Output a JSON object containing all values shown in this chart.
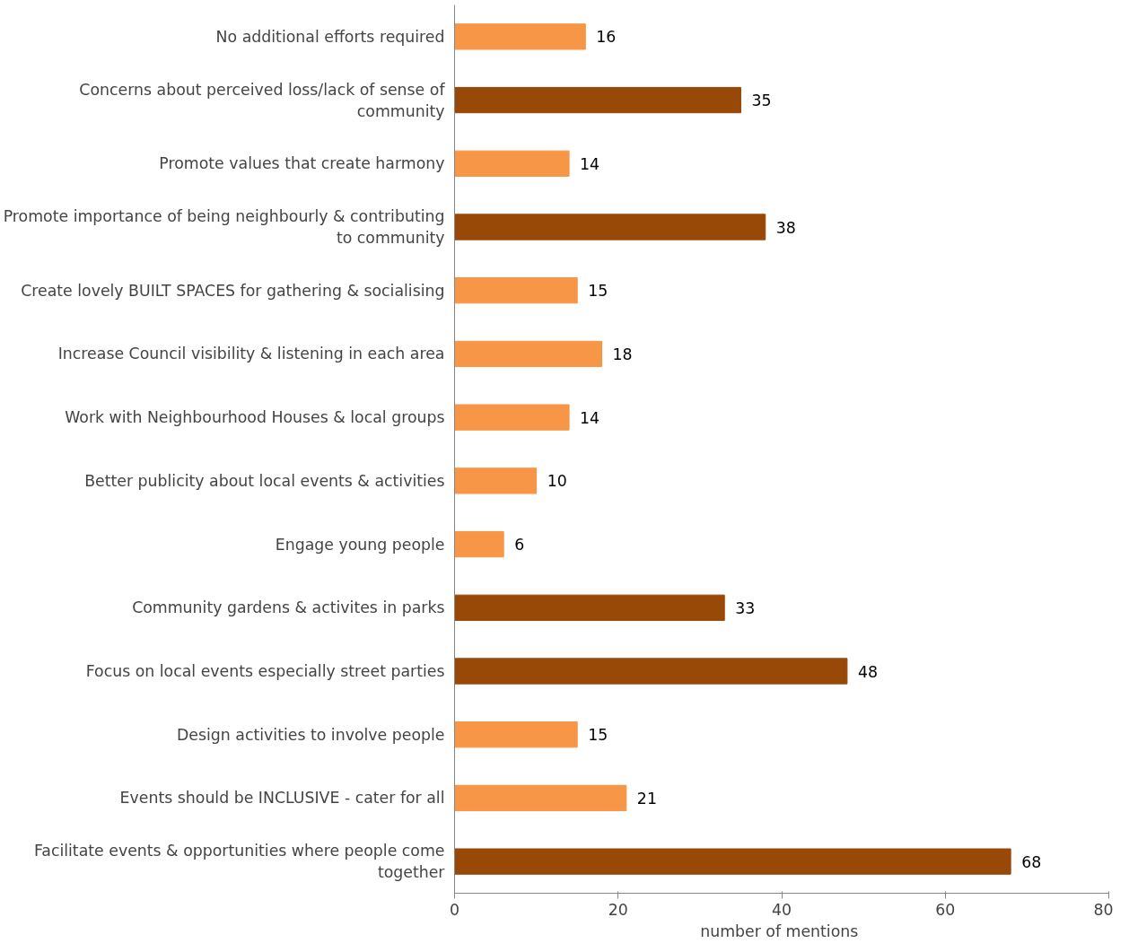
{
  "chart_data": {
    "type": "bar",
    "orientation": "horizontal",
    "xlabel": "number  of mentions",
    "categories": [
      "No additional efforts required",
      "Concerns about perceived loss/lack of sense of community",
      "Promote values that create harmony",
      "Promote importance of being neighbourly & contributing to community",
      "Create lovely BUILT SPACES for gathering & socialising",
      "Increase Council visibility & listening in each area",
      "Work with Neighbourhood Houses & local groups",
      "Better publicity about local events & activities",
      "Engage young people",
      "Community gardens & activites in parks",
      "Focus on local events especially street parties",
      "Design activities to involve people",
      "Events should be INCLUSIVE - cater for all",
      "Facilitate events & opportunities where people come together"
    ],
    "values": [
      16,
      35,
      14,
      38,
      15,
      18,
      14,
      10,
      6,
      33,
      48,
      15,
      21,
      68
    ],
    "colors": [
      "#f79646",
      "#984807",
      "#f79646",
      "#984807",
      "#f79646",
      "#f79646",
      "#f79646",
      "#f79646",
      "#f79646",
      "#984807",
      "#984807",
      "#f79646",
      "#f79646",
      "#984807"
    ],
    "xlim": [
      0,
      80
    ],
    "xticks": [
      0,
      20,
      40,
      60,
      80
    ],
    "data_labels": true,
    "grid": false
  }
}
